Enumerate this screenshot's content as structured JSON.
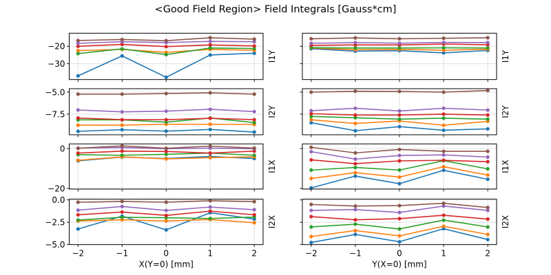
{
  "title": "<Good Field Region> Field Integrals [Gauss*cm]",
  "colors": [
    "#1f77b4",
    "#ff7f0e",
    "#2ca02c",
    "#d62728",
    "#9467bd",
    "#8c564b"
  ],
  "chart_data": [
    {
      "type": "line",
      "panel": "left-1",
      "row_label": "I1Y",
      "x": [
        -2,
        -1,
        0,
        1,
        2
      ],
      "xlim": [
        -2.2,
        2.2
      ],
      "ylim": [
        -39.1,
        -12.5
      ],
      "yticks": [
        -20,
        -30
      ],
      "ytick_labels": [
        "−20",
        "−30"
      ],
      "show_yticklabels": true,
      "xlabel": "",
      "grid": true,
      "series": [
        {
          "name": "series-1",
          "values": [
            -37.0,
            -25.5,
            -37.8,
            -25.0,
            -24.0
          ]
        },
        {
          "name": "series-2",
          "values": [
            -22.5,
            -21.8,
            -23.5,
            -21.8,
            -22.3
          ]
        },
        {
          "name": "series-3",
          "values": [
            -24.2,
            -21.5,
            -24.8,
            -21.0,
            -21.3
          ]
        },
        {
          "name": "series-4",
          "values": [
            -20.0,
            -18.9,
            -20.2,
            -19.2,
            -19.8
          ]
        },
        {
          "name": "series-5",
          "values": [
            -18.3,
            -17.4,
            -17.9,
            -17.2,
            -17.4
          ]
        },
        {
          "name": "series-6",
          "values": [
            -16.7,
            -16.1,
            -16.8,
            -15.1,
            -15.9
          ]
        }
      ]
    },
    {
      "type": "line",
      "panel": "right-1",
      "row_label": "I1Y",
      "x": [
        -2,
        -1,
        0,
        1,
        2
      ],
      "xlim": [
        -2.2,
        2.2
      ],
      "ylim": [
        -39.1,
        -12.5
      ],
      "yticks": [
        -20,
        -30
      ],
      "ytick_labels": [],
      "show_yticklabels": false,
      "xlabel": "",
      "grid": true,
      "series": [
        {
          "name": "series-1",
          "values": [
            -21.4,
            -22.8,
            -22.5,
            -23.8,
            -22.4
          ]
        },
        {
          "name": "series-2",
          "values": [
            -21.0,
            -22.0,
            -21.8,
            -22.3,
            -21.7
          ]
        },
        {
          "name": "series-3",
          "values": [
            -20.8,
            -21.0,
            -21.0,
            -20.9,
            -21.0
          ]
        },
        {
          "name": "series-4",
          "values": [
            -19.5,
            -19.2,
            -19.2,
            -18.7,
            -19.1
          ]
        },
        {
          "name": "series-5",
          "values": [
            -18.3,
            -17.9,
            -18.2,
            -17.8,
            -17.9
          ]
        },
        {
          "name": "series-6",
          "values": [
            -15.7,
            -15.2,
            -15.7,
            -15.4,
            -15.1
          ]
        }
      ]
    },
    {
      "type": "line",
      "panel": "left-2",
      "row_label": "I2Y",
      "x": [
        -2,
        -1,
        0,
        1,
        2
      ],
      "xlim": [
        -2.2,
        2.2
      ],
      "ylim": [
        -9.84,
        -4.61
      ],
      "yticks": [
        -5.0,
        -7.5
      ],
      "ytick_labels": [
        "−5.0",
        "−7.5"
      ],
      "show_yticklabels": true,
      "xlabel": "",
      "grid": true,
      "series": [
        {
          "name": "series-1",
          "values": [
            -9.45,
            -9.27,
            -9.43,
            -9.24,
            -9.53
          ]
        },
        {
          "name": "series-2",
          "values": [
            -8.75,
            -8.75,
            -8.65,
            -8.65,
            -8.67
          ]
        },
        {
          "name": "series-3",
          "values": [
            -8.15,
            -8.15,
            -8.41,
            -7.94,
            -8.46
          ]
        },
        {
          "name": "series-4",
          "values": [
            -7.94,
            -8.13,
            -8.13,
            -7.97,
            -8.13
          ]
        },
        {
          "name": "series-5",
          "values": [
            -7.03,
            -7.24,
            -7.16,
            -6.95,
            -7.21
          ]
        },
        {
          "name": "series-6",
          "values": [
            -5.23,
            -5.23,
            -5.16,
            -5.08,
            -5.23
          ]
        }
      ]
    },
    {
      "type": "line",
      "panel": "right-2",
      "row_label": "I2Y",
      "x": [
        -2,
        -1,
        0,
        1,
        2
      ],
      "xlim": [
        -2.2,
        2.2
      ],
      "ylim": [
        -9.84,
        -4.61
      ],
      "yticks": [
        -5.0,
        -7.5
      ],
      "ytick_labels": [],
      "show_yticklabels": false,
      "xlabel": "",
      "grid": true,
      "series": [
        {
          "name": "series-1",
          "values": [
            -8.48,
            -9.38,
            -8.92,
            -9.33,
            -9.17
          ]
        },
        {
          "name": "series-2",
          "values": [
            -8.14,
            -8.56,
            -8.27,
            -8.76,
            -8.32
          ]
        },
        {
          "name": "series-3",
          "values": [
            -7.76,
            -7.91,
            -8.07,
            -7.96,
            -8.07
          ]
        },
        {
          "name": "series-4",
          "values": [
            -7.45,
            -7.6,
            -7.6,
            -7.5,
            -7.6
          ]
        },
        {
          "name": "series-5",
          "values": [
            -7.11,
            -6.83,
            -7.14,
            -6.83,
            -7.04
          ]
        },
        {
          "name": "series-6",
          "values": [
            -5.0,
            -4.9,
            -4.92,
            -5.0,
            -4.82
          ]
        }
      ]
    },
    {
      "type": "line",
      "panel": "left-3",
      "row_label": "I1X",
      "x": [
        -2,
        -1,
        0,
        1,
        2
      ],
      "xlim": [
        -2.2,
        2.2
      ],
      "ylim": [
        -20.3,
        2.3
      ],
      "yticks": [
        0,
        -20
      ],
      "ytick_labels": [
        "0",
        "−20"
      ],
      "show_yticklabels": true,
      "xlabel": "",
      "grid": true,
      "series": [
        {
          "name": "series-1",
          "values": [
            -6.2,
            -4.3,
            -5.0,
            -4.0,
            -5.0
          ]
        },
        {
          "name": "series-2",
          "values": [
            -5.9,
            -4.2,
            -5.2,
            -4.6,
            -4.2
          ]
        },
        {
          "name": "series-3",
          "values": [
            -3.1,
            -3.4,
            -2.9,
            -2.3,
            -3.4
          ]
        },
        {
          "name": "series-4",
          "values": [
            -2.3,
            -1.3,
            -1.5,
            -2.3,
            -1.3
          ]
        },
        {
          "name": "series-5",
          "values": [
            0.2,
            0.5,
            -0.1,
            0.2,
            -0.1
          ]
        },
        {
          "name": "series-6",
          "values": [
            0.1,
            1.3,
            0.1,
            1.2,
            0.2
          ]
        }
      ]
    },
    {
      "type": "line",
      "panel": "right-3",
      "row_label": "I1X",
      "x": [
        -2,
        -1,
        0,
        1,
        2
      ],
      "xlim": [
        -2.2,
        2.2
      ],
      "ylim": [
        -20.3,
        2.3
      ],
      "yticks": [
        0,
        -20
      ],
      "ytick_labels": [],
      "show_yticklabels": false,
      "xlabel": "",
      "grid": true,
      "series": [
        {
          "name": "series-1",
          "values": [
            -19.7,
            -13.8,
            -17.6,
            -10.9,
            -15.4
          ]
        },
        {
          "name": "series-2",
          "values": [
            -15.0,
            -12.1,
            -14.3,
            -9.1,
            -13.3
          ]
        },
        {
          "name": "series-3",
          "values": [
            -10.8,
            -9.5,
            -10.8,
            -6.1,
            -10.2
          ]
        },
        {
          "name": "series-4",
          "values": [
            -5.7,
            -7.6,
            -6.2,
            -5.9,
            -6.6
          ]
        },
        {
          "name": "series-5",
          "values": [
            -1.6,
            -5.3,
            -3.5,
            -3.2,
            -4.3
          ]
        },
        {
          "name": "series-6",
          "values": [
            0.6,
            -2.2,
            -0.5,
            -1.4,
            -1.4
          ]
        }
      ]
    },
    {
      "type": "line",
      "panel": "left-4",
      "row_label": "I2X",
      "x": [
        -2,
        -1,
        0,
        1,
        2
      ],
      "xlim": [
        -2.2,
        2.2
      ],
      "ylim": [
        -5.0,
        0.08
      ],
      "yticks": [
        0.0,
        -2.5,
        -5.0
      ],
      "ytick_labels": [
        "0.0",
        "−2.5",
        "−5.0"
      ],
      "show_yticklabels": true,
      "xticks": [
        -2,
        -1,
        0,
        1,
        2
      ],
      "xtick_labels": [
        "−2",
        "−1",
        "0",
        "1",
        "2"
      ],
      "xlabel": "X(Y=0) [mm]",
      "grid": true,
      "series": [
        {
          "name": "series-1",
          "values": [
            -3.26,
            -1.82,
            -3.36,
            -1.44,
            -2.15
          ]
        },
        {
          "name": "series-2",
          "values": [
            -2.36,
            -2.23,
            -2.36,
            -2.2,
            -2.56
          ]
        },
        {
          "name": "series-3",
          "values": [
            -2.26,
            -1.95,
            -2.0,
            -2.08,
            -1.92
          ]
        },
        {
          "name": "series-4",
          "values": [
            -1.67,
            -1.36,
            -1.74,
            -1.26,
            -1.67
          ]
        },
        {
          "name": "series-5",
          "values": [
            -1.15,
            -0.74,
            -1.18,
            -0.8,
            -1.1
          ]
        },
        {
          "name": "series-6",
          "values": [
            -0.26,
            -0.18,
            -0.26,
            -0.1,
            -0.2
          ]
        }
      ]
    },
    {
      "type": "line",
      "panel": "right-4",
      "row_label": "I2X",
      "x": [
        -2,
        -1,
        0,
        1,
        2
      ],
      "xlim": [
        -2.2,
        2.2
      ],
      "ylim": [
        -5.0,
        0.08
      ],
      "yticks": [
        0.0,
        -2.5,
        -5.0
      ],
      "ytick_labels": [],
      "show_yticklabels": false,
      "xticks": [
        -2,
        -1,
        0,
        1,
        2
      ],
      "xtick_labels": [
        "−2",
        "−1",
        "0",
        "1",
        "2"
      ],
      "xlabel": "Y(X=0) [mm]",
      "grid": true,
      "series": [
        {
          "name": "series-1",
          "values": [
            -4.77,
            -3.87,
            -4.69,
            -3.23,
            -4.44
          ]
        },
        {
          "name": "series-2",
          "values": [
            -4.1,
            -3.44,
            -4.03,
            -2.95,
            -3.87
          ]
        },
        {
          "name": "series-3",
          "values": [
            -3.03,
            -2.72,
            -3.26,
            -2.26,
            -3.03
          ]
        },
        {
          "name": "series-4",
          "values": [
            -1.87,
            -2.23,
            -2.1,
            -1.72,
            -2.15
          ]
        },
        {
          "name": "series-5",
          "values": [
            -1.18,
            -1.08,
            -1.41,
            -0.69,
            -1.18
          ]
        },
        {
          "name": "series-6",
          "values": [
            -0.51,
            -0.69,
            -0.64,
            -0.38,
            -0.85
          ]
        }
      ]
    }
  ]
}
